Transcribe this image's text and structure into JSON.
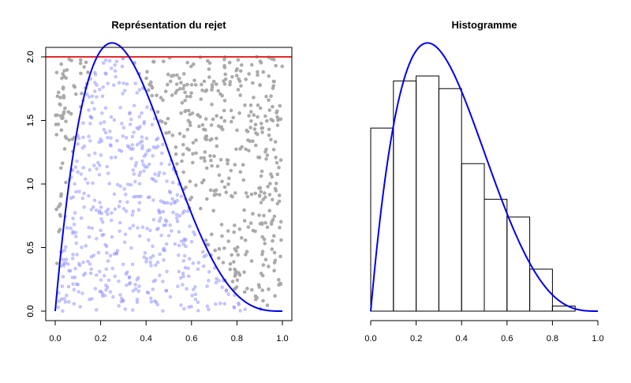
{
  "colors": {
    "curve": "#0000ee",
    "accepted_points": "#9999ff",
    "rejected_points": "#a6a6a6",
    "bound_line": "#e32b2b",
    "bars": "#000000"
  },
  "chart_data": [
    {
      "type": "scatter",
      "title": "Représentation du rejet",
      "xlabel": "",
      "ylabel": "",
      "xlim": [
        0,
        1
      ],
      "ylim": [
        0,
        2
      ],
      "x_ticks": [
        "0.0",
        "0.2",
        "0.4",
        "0.6",
        "0.8",
        "1.0"
      ],
      "y_ticks": [
        "0.0",
        "0.5",
        "1.0",
        "1.5",
        "2.0"
      ],
      "bound_line_y": 2,
      "density_curve": "20 x (1 - x)^3",
      "point_count_approx": 1000,
      "series": [
        {
          "role": "accepted",
          "rule": "y < 20 x (1 - x)^3"
        },
        {
          "role": "rejected",
          "rule": "y >= 20 x (1 - x)^3"
        }
      ]
    },
    {
      "type": "bar",
      "title": "Histogramme",
      "xlabel": "",
      "ylabel": "",
      "xlim": [
        0,
        1
      ],
      "ylim": [
        0,
        2
      ],
      "x_ticks": [
        "0.0",
        "0.2",
        "0.4",
        "0.6",
        "0.8",
        "1.0"
      ],
      "y_ticks": [
        "0.0",
        "0.5",
        "1.0",
        "1.5",
        "2.0"
      ],
      "bin_edges": [
        0.0,
        0.1,
        0.2,
        0.3,
        0.4,
        0.5,
        0.6,
        0.7,
        0.8,
        0.9
      ],
      "values": [
        1.44,
        1.81,
        1.85,
        1.75,
        1.16,
        0.88,
        0.74,
        0.33,
        0.04
      ],
      "density_curve": "20 x (1 - x)^3"
    }
  ]
}
